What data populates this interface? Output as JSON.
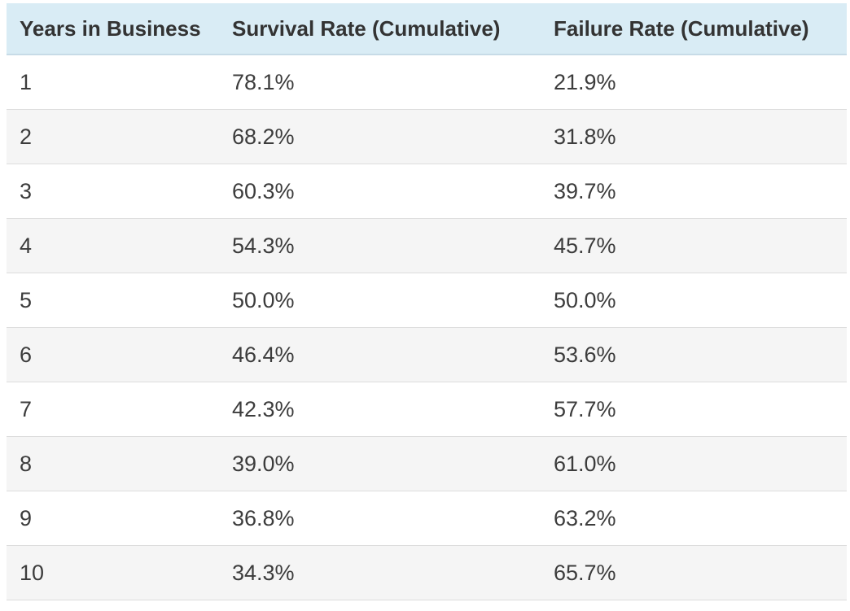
{
  "table": {
    "columns": [
      {
        "key": "years",
        "label": "Years in Business"
      },
      {
        "key": "survival",
        "label": "Survival Rate (Cumulative)"
      },
      {
        "key": "failure",
        "label": "Failure Rate (Cumulative)"
      }
    ],
    "rows": [
      {
        "years": "1",
        "survival": "78.1%",
        "failure": "21.9%"
      },
      {
        "years": "2",
        "survival": "68.2%",
        "failure": "31.8%"
      },
      {
        "years": "3",
        "survival": "60.3%",
        "failure": "39.7%"
      },
      {
        "years": "4",
        "survival": "54.3%",
        "failure": "45.7%"
      },
      {
        "years": "5",
        "survival": "50.0%",
        "failure": "50.0%"
      },
      {
        "years": "6",
        "survival": "46.4%",
        "failure": "53.6%"
      },
      {
        "years": "7",
        "survival": "42.3%",
        "failure": "57.7%"
      },
      {
        "years": "8",
        "survival": "39.0%",
        "failure": "61.0%"
      },
      {
        "years": "9",
        "survival": "36.8%",
        "failure": "63.2%"
      },
      {
        "years": "10",
        "survival": "34.3%",
        "failure": "65.7%"
      }
    ]
  },
  "colors": {
    "header_background": "#d9ecf5",
    "header_border": "#c7dbe7",
    "stripe_background": "#f5f5f5",
    "row_border": "#dddddd",
    "header_text": "#333333",
    "body_text": "#3c3c3c",
    "page_background": "#ffffff"
  },
  "chart_data": {
    "type": "table",
    "title": "",
    "columns": [
      "Years in Business",
      "Survival Rate (Cumulative)",
      "Failure Rate (Cumulative)"
    ],
    "x": [
      1,
      2,
      3,
      4,
      5,
      6,
      7,
      8,
      9,
      10
    ],
    "xlabel": "Years in Business",
    "series": [
      {
        "name": "Survival Rate (Cumulative)",
        "unit": "%",
        "values": [
          78.1,
          68.2,
          60.3,
          54.3,
          50.0,
          46.4,
          42.3,
          39.0,
          36.8,
          34.3
        ]
      },
      {
        "name": "Failure Rate (Cumulative)",
        "unit": "%",
        "values": [
          21.9,
          31.8,
          39.7,
          45.7,
          50.0,
          53.6,
          57.7,
          61.0,
          63.2,
          65.7
        ]
      }
    ],
    "layout_hints": {
      "zebra_striping": true,
      "header_highlight": "light-blue",
      "grid": "horizontal-row-borders-only"
    }
  }
}
